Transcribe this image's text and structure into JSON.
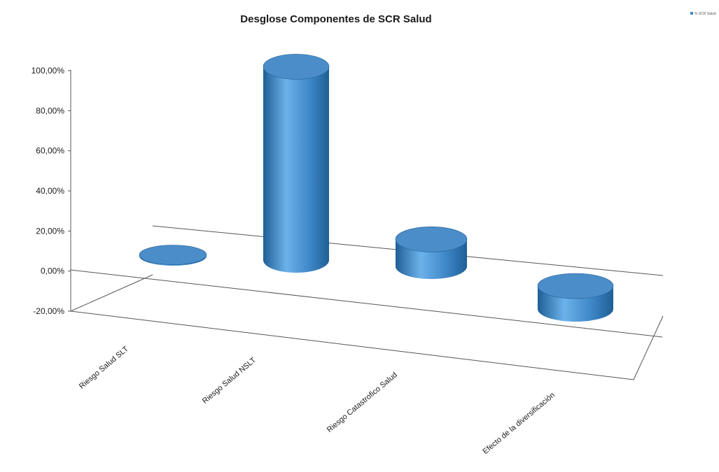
{
  "chart_data": {
    "type": "bar",
    "style": "3d-cylinder",
    "title": "Desglose Componentes de SCR Salud",
    "categories": [
      "Riesgo Salud SLT",
      "Riesgo Salud NSLT",
      "Riesgo Catastrofico Salud",
      "Efecto de la diversificación"
    ],
    "series": [
      {
        "name": "% SCR Salud",
        "values": [
          0.5,
          96.5,
          13.5,
          -11.5
        ]
      }
    ],
    "y_ticks": [
      "100,00%",
      "80,00%",
      "60,00%",
      "40,00%",
      "20,00%",
      "0,00%",
      "-20,00%"
    ],
    "ylim": [
      -20,
      100
    ],
    "grid": false,
    "legend_position": "top-right",
    "colors": {
      "bar": "#3f88c8",
      "bar_dark": "#1f5f96",
      "bar_light": "#6cb2ea",
      "top": "#4a8dc8",
      "axis": "#555555"
    }
  }
}
